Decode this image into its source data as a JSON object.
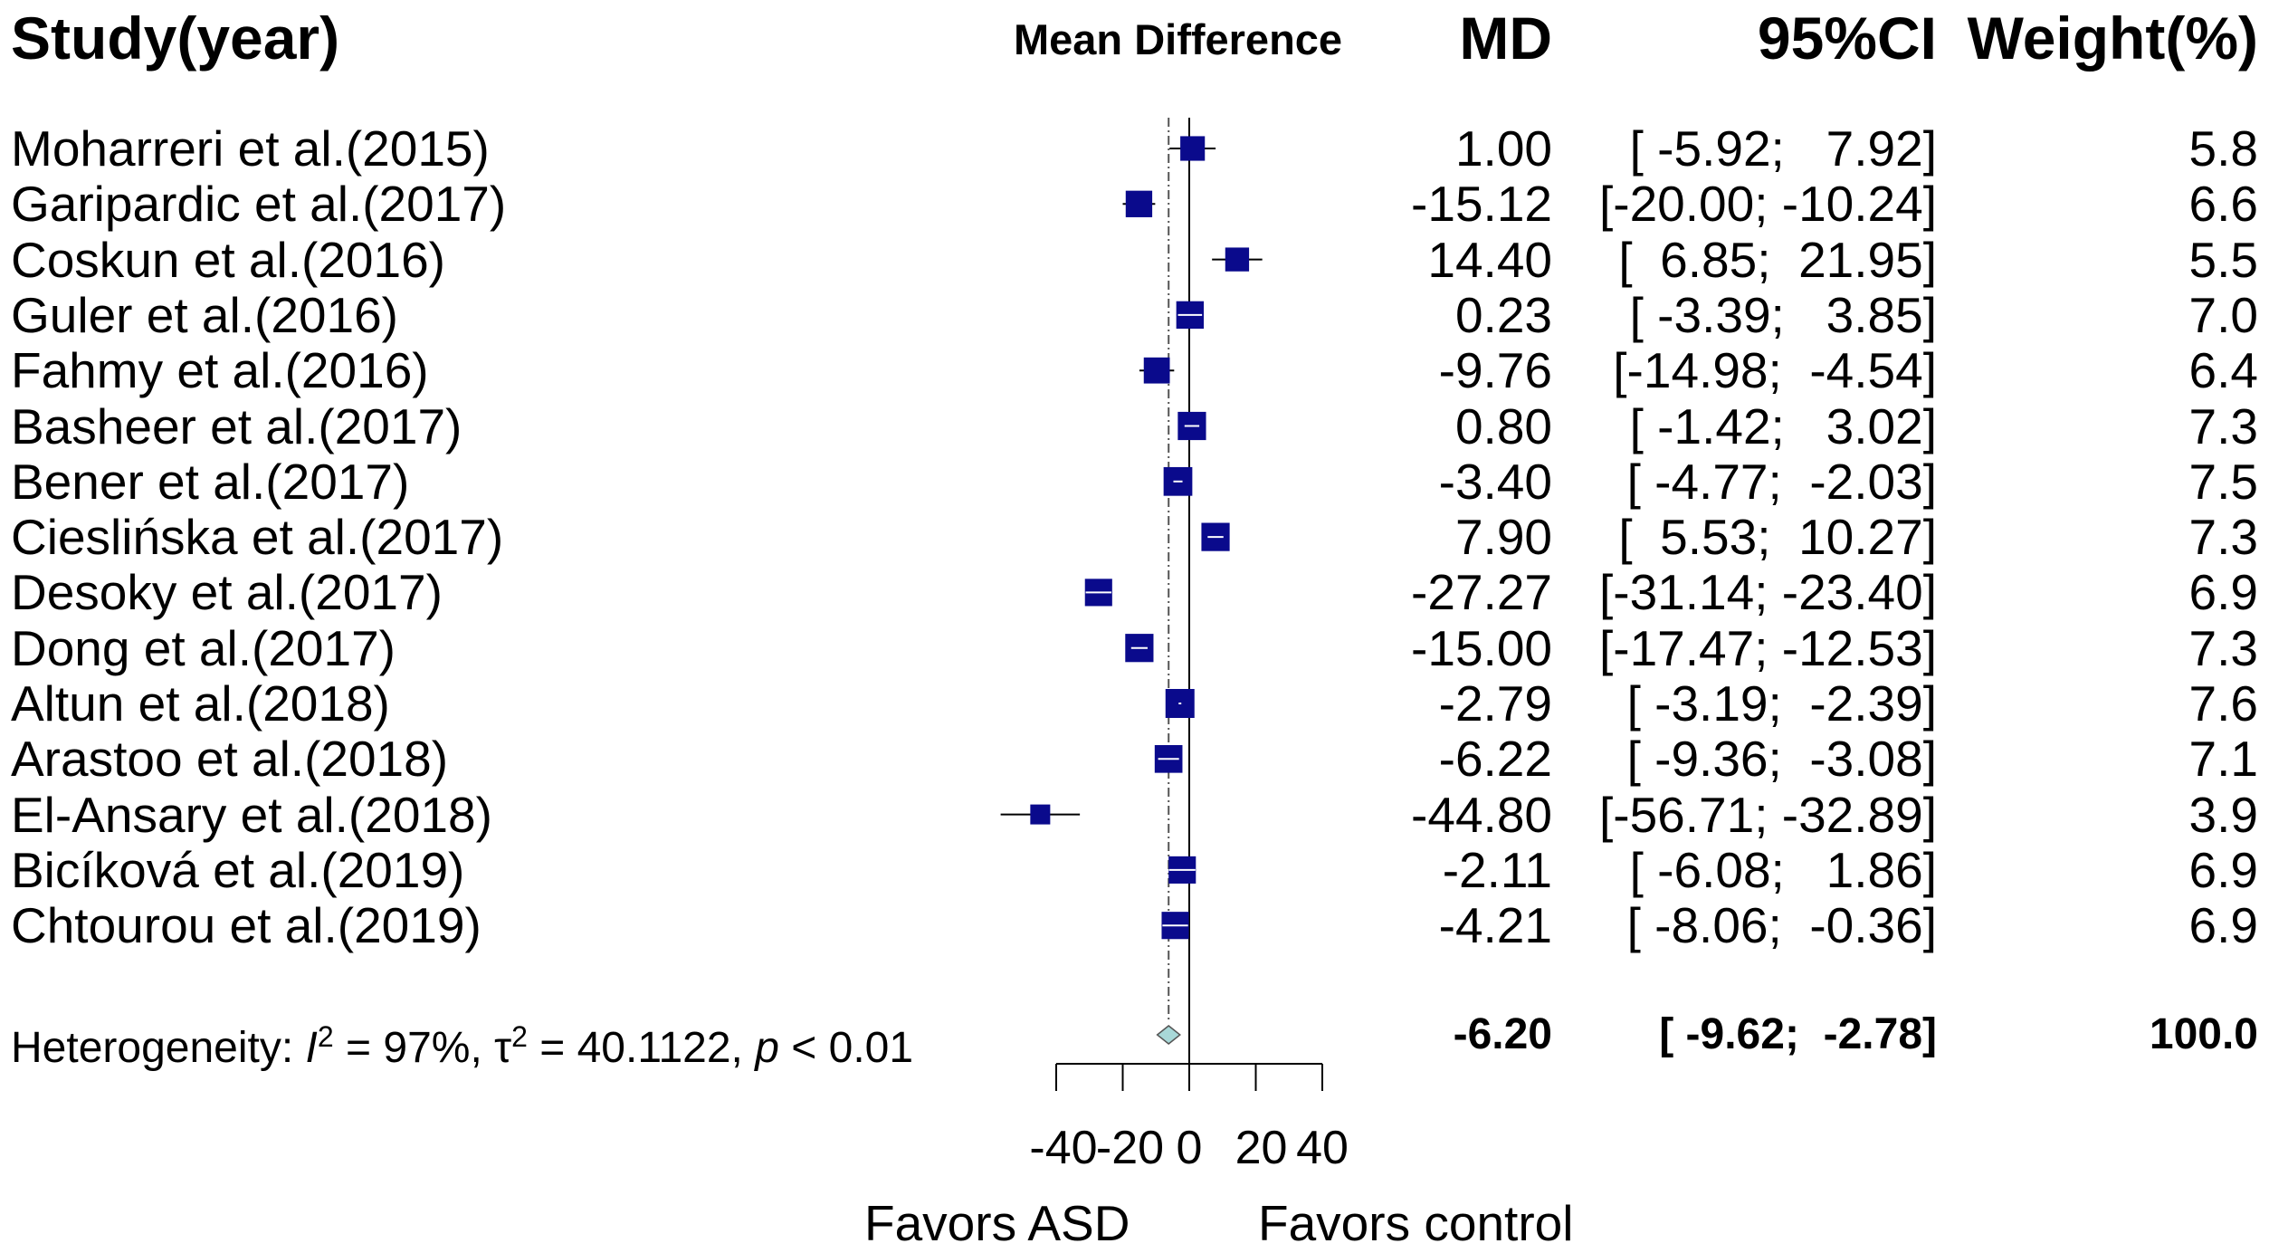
{
  "headers": {
    "study": "Study(year)",
    "plot": "Mean Difference",
    "md": "MD",
    "ci": "95%CI",
    "weight": "Weight(%)"
  },
  "studies": [
    {
      "name": "Moharreri et al.(2015)",
      "md": "1.00",
      "ci": "[ -5.92;   7.92]",
      "weight": "5.8"
    },
    {
      "name": "Garipardic et al.(2017)",
      "md": "-15.12",
      "ci": "[-20.00; -10.24]",
      "weight": "6.6"
    },
    {
      "name": "Coskun et al.(2016)",
      "md": "14.40",
      "ci": "[  6.85;  21.95]",
      "weight": "5.5"
    },
    {
      "name": "Guler et al.(2016)",
      "md": "0.23",
      "ci": "[ -3.39;   3.85]",
      "weight": "7.0"
    },
    {
      "name": "Fahmy et al.(2016)",
      "md": "-9.76",
      "ci": "[-14.98;  -4.54]",
      "weight": "6.4"
    },
    {
      "name": "Basheer et al.(2017)",
      "md": "0.80",
      "ci": "[ -1.42;   3.02]",
      "weight": "7.3"
    },
    {
      "name": "Bener et al.(2017)",
      "md": "-3.40",
      "ci": "[ -4.77;  -2.03]",
      "weight": "7.5"
    },
    {
      "name": "Cieslińska et al.(2017)",
      "md": "7.90",
      "ci": "[  5.53;  10.27]",
      "weight": "7.3"
    },
    {
      "name": "Desoky et al.(2017)",
      "md": "-27.27",
      "ci": "[-31.14; -23.40]",
      "weight": "6.9"
    },
    {
      "name": "Dong et al.(2017)",
      "md": "-15.00",
      "ci": "[-17.47; -12.53]",
      "weight": "7.3"
    },
    {
      "name": "Altun et al.(2018)",
      "md": "-2.79",
      "ci": "[ -3.19;  -2.39]",
      "weight": "7.6"
    },
    {
      "name": "Arastoo et al.(2018)",
      "md": "-6.22",
      "ci": "[ -9.36;  -3.08]",
      "weight": "7.1"
    },
    {
      "name": "El-Ansary et al.(2018)",
      "md": "-44.80",
      "ci": "[-56.71; -32.89]",
      "weight": "3.9"
    },
    {
      "name": "Bicíková et al.(2019)",
      "md": "-2.11",
      "ci": "[ -6.08;   1.86]",
      "weight": "6.9"
    },
    {
      "name": "Chtourou et al.(2019)",
      "md": "-4.21",
      "ci": "[ -8.06;  -0.36]",
      "weight": "6.9"
    }
  ],
  "summary": {
    "heterogeneity_label": "Heterogeneity: ",
    "i2_symbol": "I",
    "i2_value": " = 97%, ",
    "tau2_symbol": "τ",
    "tau2_value": " = 40.1122, ",
    "p_symbol": "p",
    "p_value": " < 0.01",
    "sup": "2",
    "md": "-6.20",
    "ci": "[ -9.62;  -2.78]",
    "weight": "100.0"
  },
  "chart_data": {
    "type": "forest",
    "title": "Mean Difference",
    "effects": [
      1.0,
      -15.12,
      14.4,
      0.23,
      -9.76,
      0.8,
      -3.4,
      7.9,
      -27.27,
      -15.0,
      -2.79,
      -6.22,
      -44.8,
      -2.11,
      -4.21
    ],
    "ci_lower": [
      -5.92,
      -20.0,
      6.85,
      -3.39,
      -14.98,
      -1.42,
      -4.77,
      5.53,
      -31.14,
      -17.47,
      -3.19,
      -9.36,
      -56.71,
      -6.08,
      -8.06
    ],
    "ci_upper": [
      7.92,
      -10.24,
      21.95,
      3.85,
      -4.54,
      3.02,
      -2.03,
      10.27,
      -23.4,
      -12.53,
      -2.39,
      -3.08,
      -32.89,
      1.86,
      -0.36
    ],
    "weights": [
      5.8,
      6.6,
      5.5,
      7.0,
      6.4,
      7.3,
      7.5,
      7.3,
      6.9,
      7.3,
      7.6,
      7.1,
      3.9,
      6.9,
      6.9
    ],
    "pooled": {
      "effect": -6.2,
      "lower": -9.62,
      "upper": -2.78
    },
    "xlim": [
      -40,
      40
    ],
    "ticks": [
      -40,
      -20,
      0,
      20,
      40
    ],
    "tick_labels": [
      "-40",
      "-20",
      "0",
      "20",
      "40"
    ],
    "xlabel_left": "Favors ASD",
    "xlabel_right": "Favors control",
    "colors": {
      "box": "#0a0a8c",
      "diamond": "#a8d8d8",
      "line": "#000000"
    }
  }
}
